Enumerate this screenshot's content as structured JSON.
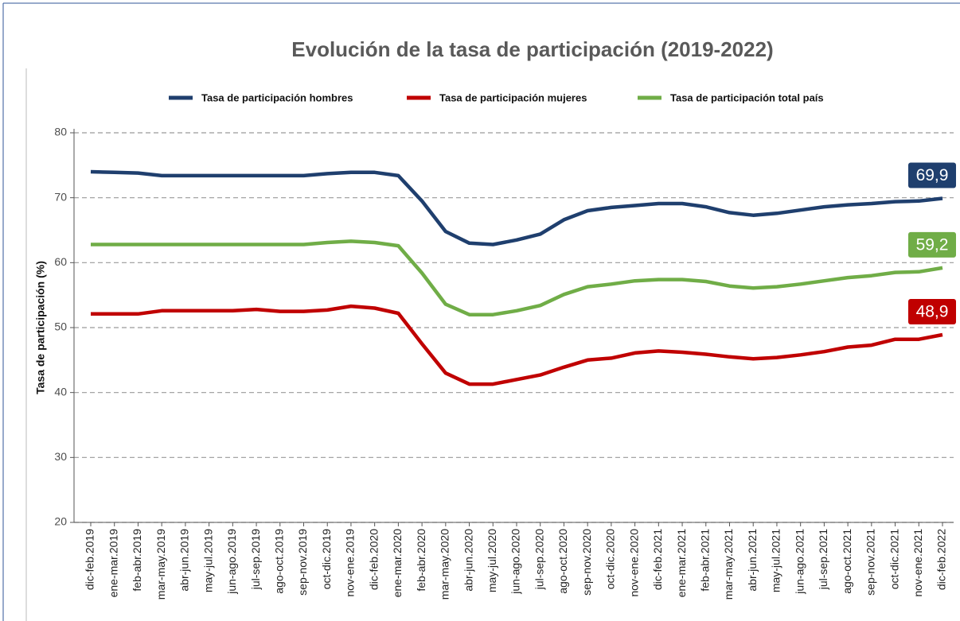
{
  "chart_data": {
    "type": "line",
    "title": "Evolución de la tasa de participación (2019-2022)",
    "y_label": "Tasa de participación (%)",
    "categories": [
      "dic-feb.2019",
      "ene-mar.2019",
      "feb-abr.2019",
      "mar-may.2019",
      "abr-jun.2019",
      "may-jul.2019",
      "jun-ago.2019",
      "jul-sep.2019",
      "ago-oct.2019",
      "sep-nov.2019",
      "oct-dic.2019",
      "nov-ene.2019",
      "dic-feb.2020",
      "ene-mar.2020",
      "feb-abr.2020",
      "mar-may.2020",
      "abr-jun.2020",
      "may-jul.2020",
      "jun-ago.2020",
      "jul-sep.2020",
      "ago-oct.2020",
      "sep-nov.2020",
      "oct-dic.2020",
      "nov-ene.2020",
      "dic-feb.2021",
      "ene-mar.2021",
      "feb-abr.2021",
      "mar-may.2021",
      "abr-jun.2021",
      "may-jul.2021",
      "jun-ago.2021",
      "jul-sep.2021",
      "ago-oct.2021",
      "sep-nov.2021",
      "oct-dic.2021",
      "nov-ene.2021",
      "dic-feb.2022"
    ],
    "series": [
      {
        "name": "Tasa de participación hombres",
        "color": "#1f3f6e",
        "values": [
          74.0,
          73.9,
          73.8,
          73.4,
          73.4,
          73.4,
          73.4,
          73.4,
          73.4,
          73.4,
          73.7,
          73.9,
          73.9,
          73.4,
          69.5,
          64.8,
          63.0,
          62.8,
          63.5,
          64.4,
          66.6,
          68.0,
          68.5,
          68.8,
          69.1,
          69.1,
          68.6,
          67.7,
          67.3,
          67.6,
          68.1,
          68.6,
          68.9,
          69.1,
          69.4,
          69.5,
          69.9
        ],
        "value_labels": [
          null,
          null,
          null,
          null,
          null,
          null,
          null,
          null,
          null,
          null,
          null,
          null,
          null,
          null,
          null,
          null,
          null,
          null,
          null,
          null,
          null,
          null,
          null,
          null,
          null,
          null,
          null,
          null,
          null,
          null,
          null,
          null,
          null,
          null,
          null,
          null,
          "69,9"
        ]
      },
      {
        "name": "Tasa de participación mujeres",
        "color": "#c00000",
        "values": [
          52.1,
          52.1,
          52.1,
          52.6,
          52.6,
          52.6,
          52.6,
          52.8,
          52.5,
          52.5,
          52.7,
          53.3,
          53.0,
          52.2,
          47.5,
          43.0,
          41.3,
          41.3,
          42.0,
          42.7,
          43.9,
          45.0,
          45.3,
          46.1,
          46.4,
          46.2,
          45.9,
          45.5,
          45.2,
          45.4,
          45.8,
          46.3,
          47.0,
          47.3,
          48.2,
          48.2,
          48.9
        ],
        "value_labels": [
          null,
          null,
          null,
          null,
          null,
          null,
          null,
          null,
          null,
          null,
          null,
          null,
          null,
          null,
          null,
          null,
          null,
          null,
          null,
          null,
          null,
          null,
          null,
          null,
          null,
          null,
          null,
          null,
          null,
          null,
          null,
          null,
          null,
          null,
          null,
          null,
          "48,9"
        ]
      },
      {
        "name": "Tasa de participación total país",
        "color": "#70ad47",
        "values": [
          62.8,
          62.8,
          62.8,
          62.8,
          62.8,
          62.8,
          62.8,
          62.8,
          62.8,
          62.8,
          63.1,
          63.3,
          63.1,
          62.6,
          58.4,
          53.6,
          52.0,
          52.0,
          52.6,
          53.4,
          55.1,
          56.3,
          56.7,
          57.2,
          57.4,
          57.4,
          57.1,
          56.4,
          56.1,
          56.3,
          56.7,
          57.2,
          57.7,
          58.0,
          58.5,
          58.6,
          59.2
        ],
        "value_labels": [
          null,
          null,
          null,
          null,
          null,
          null,
          null,
          null,
          null,
          null,
          null,
          null,
          null,
          null,
          null,
          null,
          null,
          null,
          null,
          null,
          null,
          null,
          null,
          null,
          null,
          null,
          null,
          null,
          null,
          null,
          null,
          null,
          null,
          null,
          null,
          null,
          "59,2"
        ]
      }
    ],
    "ylim": [
      20,
      80
    ],
    "yticks": [
      20,
      30,
      40,
      50,
      60,
      70,
      80
    ],
    "grid": true,
    "legend": "top"
  }
}
